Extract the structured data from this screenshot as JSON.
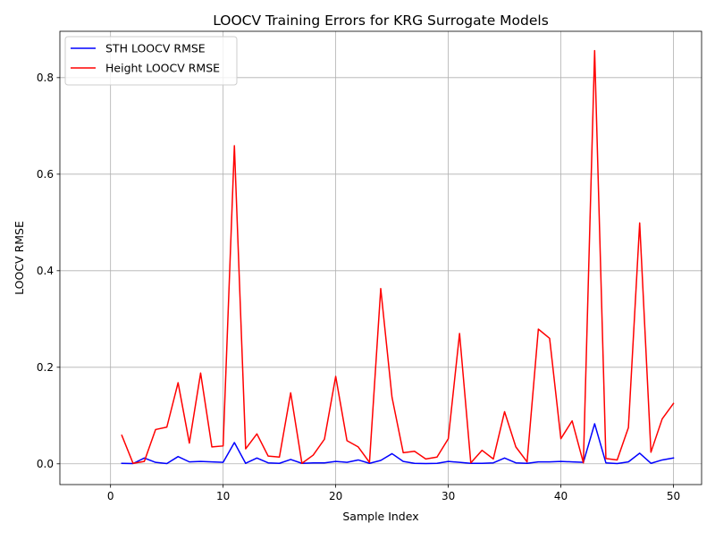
{
  "chart_data": {
    "type": "line",
    "title": "LOOCV Training Errors for KRG Surrogate Models",
    "xlabel": "Sample Index",
    "ylabel": "LOOCV RMSE",
    "xlim": [
      -4.5,
      52.5
    ],
    "ylim": [
      -0.043,
      0.896
    ],
    "xticks": [
      0,
      10,
      20,
      30,
      40,
      50
    ],
    "yticks": [
      0.0,
      0.2,
      0.4,
      0.6,
      0.8
    ],
    "xtick_labels": [
      "0",
      "10",
      "20",
      "30",
      "40",
      "50"
    ],
    "ytick_labels": [
      "0.0",
      "0.2",
      "0.4",
      "0.6",
      "0.8"
    ],
    "grid": true,
    "legend_position": "top-left",
    "x": [
      1,
      2,
      3,
      4,
      5,
      6,
      7,
      8,
      9,
      10,
      11,
      12,
      13,
      14,
      15,
      16,
      17,
      18,
      19,
      20,
      21,
      22,
      23,
      24,
      25,
      26,
      27,
      28,
      29,
      30,
      31,
      32,
      33,
      34,
      35,
      36,
      37,
      38,
      39,
      40,
      41,
      42,
      43,
      44,
      45,
      46,
      47,
      48,
      49,
      50
    ],
    "series": [
      {
        "name": "STH LOOCV RMSE",
        "color": "#0000ff",
        "values": [
          0.001,
          0.0005,
          0.012,
          0.003,
          0.0005,
          0.015,
          0.004,
          0.005,
          0.004,
          0.003,
          0.044,
          0.001,
          0.012,
          0.002,
          0.001,
          0.009,
          0.001,
          0.002,
          0.002,
          0.005,
          0.003,
          0.008,
          0.001,
          0.007,
          0.021,
          0.005,
          0.001,
          0.0005,
          0.001,
          0.005,
          0.003,
          0.001,
          0.001,
          0.002,
          0.012,
          0.002,
          0.001,
          0.004,
          0.004,
          0.005,
          0.004,
          0.003,
          0.083,
          0.002,
          0.0005,
          0.004,
          0.022,
          0.001,
          0.008,
          0.012
        ]
      },
      {
        "name": "Height LOOCV RMSE",
        "color": "#ff0000",
        "values": [
          0.059,
          0.001,
          0.005,
          0.071,
          0.076,
          0.168,
          0.043,
          0.188,
          0.035,
          0.037,
          0.659,
          0.031,
          0.062,
          0.016,
          0.014,
          0.147,
          0.001,
          0.018,
          0.051,
          0.181,
          0.048,
          0.035,
          0.003,
          0.363,
          0.138,
          0.023,
          0.026,
          0.01,
          0.014,
          0.052,
          0.27,
          0.002,
          0.028,
          0.01,
          0.108,
          0.035,
          0.004,
          0.279,
          0.26,
          0.052,
          0.089,
          0.002,
          0.856,
          0.011,
          0.008,
          0.075,
          0.499,
          0.024,
          0.093,
          0.125
        ]
      }
    ]
  }
}
